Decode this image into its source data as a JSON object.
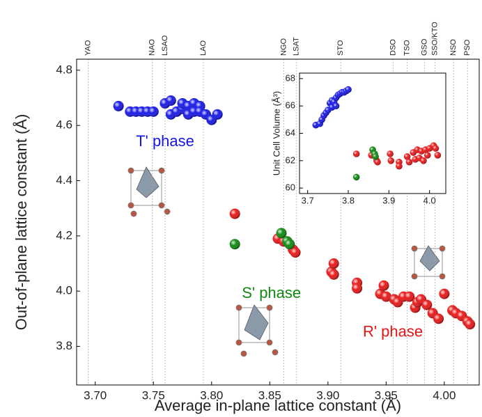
{
  "chart_data": [
    {
      "type": "scatter",
      "x_label": "Average in-plane lattice constant (Å)",
      "y_label": "Out-of-plane lattice constant (Å)",
      "xlim": [
        3.684,
        4.03
      ],
      "ylim": [
        3.66,
        4.84
      ],
      "xticks": [
        {
          "value": 3.7,
          "label": "3.70"
        },
        {
          "value": 3.75,
          "label": "3.75"
        },
        {
          "value": 3.8,
          "label": "3.80"
        },
        {
          "value": 3.85,
          "label": "3.85"
        },
        {
          "value": 3.9,
          "label": "3.90"
        },
        {
          "value": 3.95,
          "label": "3.95"
        },
        {
          "value": 4.0,
          "label": "4.00"
        }
      ],
      "yticks": [
        3.8,
        {
          "value": 4.0,
          "label": "4.0"
        },
        4.2,
        4.4,
        4.6,
        4.8
      ],
      "substrates": [
        {
          "label": "YAO",
          "x": 3.694
        },
        {
          "label": "NAO",
          "x": 3.749
        },
        {
          "label": "LSAO",
          "x": 3.76
        },
        {
          "label": "LAO",
          "x": 3.793
        },
        {
          "label": "NGO",
          "x": 3.862
        },
        {
          "label": "LSAT",
          "x": 3.873
        },
        {
          "label": "STO",
          "x": 3.911
        },
        {
          "label": "DSO",
          "x": 3.956
        },
        {
          "label": "TSO",
          "x": 3.968
        },
        {
          "label": "GSO",
          "x": 3.983
        },
        {
          "label": "SSO/KTO",
          "x": 3.992
        },
        {
          "label": "NSO",
          "x": 4.008
        },
        {
          "label": "PSO",
          "x": 4.02
        }
      ],
      "annotations": [
        {
          "text": "T' phase",
          "color": "#1414e6",
          "x": 3.735,
          "y": 4.54
        },
        {
          "text": "S' phase",
          "color": "#118811",
          "x": 3.826,
          "y": 3.99
        },
        {
          "text": "R' phase",
          "color": "#e61414",
          "x": 3.93,
          "y": 3.85
        }
      ],
      "series": [
        {
          "color": "#1a1ae8",
          "x": [
            3.72,
            3.73,
            3.735,
            3.74,
            3.745,
            3.75,
            3.76,
            3.765,
            3.765,
            3.77,
            3.775,
            3.775,
            3.78,
            3.78,
            3.785,
            3.785,
            3.79,
            3.79,
            3.795,
            3.8,
            3.805
          ],
          "values": [
            4.67,
            4.65,
            4.65,
            4.65,
            4.65,
            4.65,
            4.68,
            4.69,
            4.64,
            4.65,
            4.66,
            4.68,
            4.67,
            4.64,
            4.68,
            4.65,
            4.67,
            4.65,
            4.64,
            4.62,
            4.64
          ]
        },
        {
          "color": "#e81a1a",
          "x": [
            3.82,
            3.857,
            3.862,
            3.87,
            3.872,
            3.903,
            3.905,
            3.905,
            3.925,
            3.925,
            3.945,
            3.948,
            3.95,
            3.957,
            3.96,
            3.965,
            3.97,
            3.975,
            3.977,
            3.98,
            3.985,
            3.99,
            3.995,
            4.0,
            4.007,
            4.01,
            4.015,
            4.02,
            4.022
          ],
          "values": [
            4.28,
            4.19,
            4.18,
            4.15,
            4.14,
            4.07,
            4.1,
            4.06,
            4.03,
            4.01,
            3.99,
            4.02,
            3.98,
            3.97,
            3.96,
            3.98,
            3.98,
            3.94,
            3.96,
            3.97,
            3.95,
            3.92,
            3.9,
            3.99,
            3.93,
            3.92,
            3.91,
            3.89,
            3.88
          ]
        },
        {
          "color": "#128a12",
          "x": [
            3.82,
            3.86,
            3.865,
            3.867
          ],
          "values": [
            4.17,
            4.21,
            4.18,
            4.17
          ]
        }
      ]
    },
    {
      "type": "scatter",
      "y_label": "Unit Cell Volume (Å³)",
      "xlim": [
        3.68,
        4.04
      ],
      "ylim": [
        59.6,
        68.4
      ],
      "xticks": [
        3.7,
        3.8,
        3.9,
        {
          "value": 4.0,
          "label": "4.0"
        }
      ],
      "yticks": [
        60,
        62,
        64,
        66,
        68
      ],
      "series": [
        {
          "color": "#1a1ae8",
          "x": [
            3.72,
            3.73,
            3.735,
            3.74,
            3.745,
            3.75,
            3.755,
            3.76,
            3.76,
            3.765,
            3.77,
            3.77,
            3.775,
            3.78,
            3.785,
            3.79,
            3.795,
            3.8
          ],
          "values": [
            64.6,
            64.7,
            65.0,
            65.3,
            65.5,
            65.7,
            66.2,
            66.4,
            65.9,
            66.3,
            66.6,
            66.0,
            66.8,
            66.9,
            67.0,
            67.0,
            67.1,
            67.2
          ]
        },
        {
          "color": "#e81a1a",
          "x": [
            3.82,
            3.857,
            3.87,
            3.872,
            3.903,
            3.905,
            3.925,
            3.925,
            3.945,
            3.95,
            3.96,
            3.965,
            3.97,
            3.975,
            3.98,
            3.985,
            3.99,
            3.995,
            4.0,
            4.01,
            4.015,
            4.02
          ],
          "values": [
            62.5,
            62.4,
            62.0,
            61.9,
            62.5,
            62.0,
            61.9,
            61.6,
            62.3,
            61.9,
            62.6,
            62.1,
            62.8,
            62.2,
            62.7,
            62.0,
            62.8,
            62.4,
            62.9,
            63.1,
            62.9,
            62.4
          ]
        },
        {
          "color": "#128a12",
          "x": [
            3.82,
            3.86,
            3.865,
            3.867
          ],
          "values": [
            60.8,
            62.8,
            62.5,
            62.3
          ]
        }
      ]
    }
  ]
}
